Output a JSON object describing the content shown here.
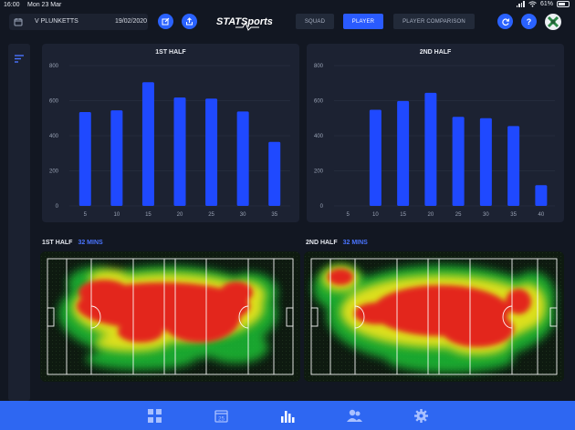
{
  "status_bar": {
    "time": "16:00",
    "date": "Mon 23 Mar",
    "battery": "61%"
  },
  "header": {
    "match_name": "V PLUNKETTS",
    "match_date": "19/02/2020",
    "logo_text": "STATSports",
    "nav": [
      {
        "label": "SQUAD",
        "active": false
      },
      {
        "label": "PLAYER",
        "active": true
      },
      {
        "label": "PLAYER COMPARISON",
        "active": false
      }
    ],
    "help_label": "?"
  },
  "charts_text": {
    "first": {
      "title": "1ST HALF"
    },
    "second": {
      "title": "2ND HALF"
    }
  },
  "heatmaps": {
    "first": {
      "label": "1ST HALF",
      "minutes": "32 MINS"
    },
    "second": {
      "label": "2ND HALF",
      "minutes": "32 MINS"
    }
  },
  "colors": {
    "accent": "#2a5bff",
    "bar": "#1f49ff",
    "tabbar": "#2e67f2"
  },
  "tabs": [
    {
      "icon": "dashboard-grid-icon",
      "active": false
    },
    {
      "icon": "calendar-icon",
      "active": false,
      "text": "25"
    },
    {
      "icon": "bar-chart-icon",
      "active": true
    },
    {
      "icon": "users-icon",
      "active": false
    },
    {
      "icon": "settings-gear-icon",
      "active": false
    }
  ],
  "chart_data": [
    {
      "type": "bar",
      "title": "1ST HALF",
      "categories": [
        "5",
        "10",
        "15",
        "20",
        "25",
        "30",
        "35"
      ],
      "values": [
        535,
        545,
        705,
        618,
        612,
        538,
        365
      ],
      "yticks": [
        "0",
        "200",
        "400",
        "600",
        "800"
      ],
      "ylim": [
        0,
        800
      ],
      "grid": true,
      "xlabel": "",
      "ylabel": ""
    },
    {
      "type": "bar",
      "title": "2ND HALF",
      "categories": [
        "5",
        "10",
        "15",
        "20",
        "25",
        "30",
        "35",
        "40"
      ],
      "values": [
        0,
        548,
        598,
        645,
        508,
        500,
        455,
        118
      ],
      "yticks": [
        "0",
        "200",
        "400",
        "600",
        "800"
      ],
      "ylim": [
        0,
        800
      ],
      "grid": true,
      "xlabel": "",
      "ylabel": ""
    }
  ]
}
